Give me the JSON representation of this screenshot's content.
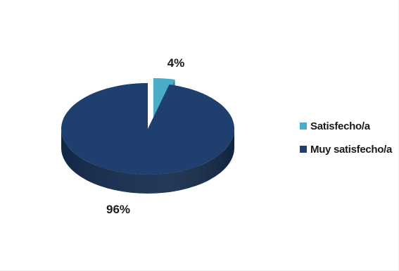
{
  "chart_data": {
    "type": "pie",
    "style": "3d-exploded",
    "legend_position": "right",
    "slices": [
      {
        "label": "Satisfecho/a",
        "value": 4,
        "value_label": "4%",
        "color": "#4aacc6",
        "side_color": "#2f7f93"
      },
      {
        "label": "Muy satisfecho/a",
        "value": 96,
        "value_label": "96%",
        "color": "#1f3f6e",
        "side_color": "#142b4d"
      }
    ]
  }
}
